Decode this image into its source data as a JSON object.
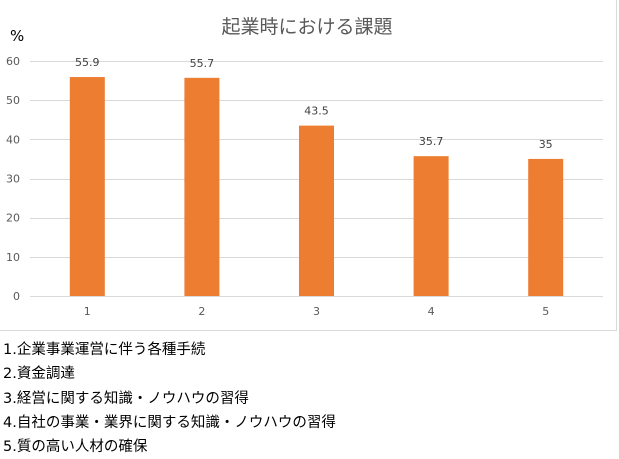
{
  "chart_data": {
    "type": "bar",
    "title": "起業時における課題",
    "ylabel": "%",
    "xlabel": "",
    "categories": [
      "1",
      "2",
      "3",
      "4",
      "5"
    ],
    "values": [
      55.9,
      55.7,
      43.5,
      35.7,
      35
    ],
    "value_labels": [
      "55.9",
      "55.7",
      "43.5",
      "35.7",
      "35"
    ],
    "ylim": [
      0,
      60
    ],
    "yticks": [
      0,
      10,
      20,
      30,
      40,
      50,
      60
    ],
    "grid": true,
    "legend": "none",
    "bar_color": "#ED7D31",
    "grid_color": "#D9D9D9"
  },
  "notes": [
    "1.企業事業運営に伴う各種手続",
    "2.資金調達",
    "3.経営に関する知識・ノウハウの習得",
    "4.自社の事業・業界に関する知識・ノウハウの習得",
    "5.質の高い人材の確保"
  ]
}
